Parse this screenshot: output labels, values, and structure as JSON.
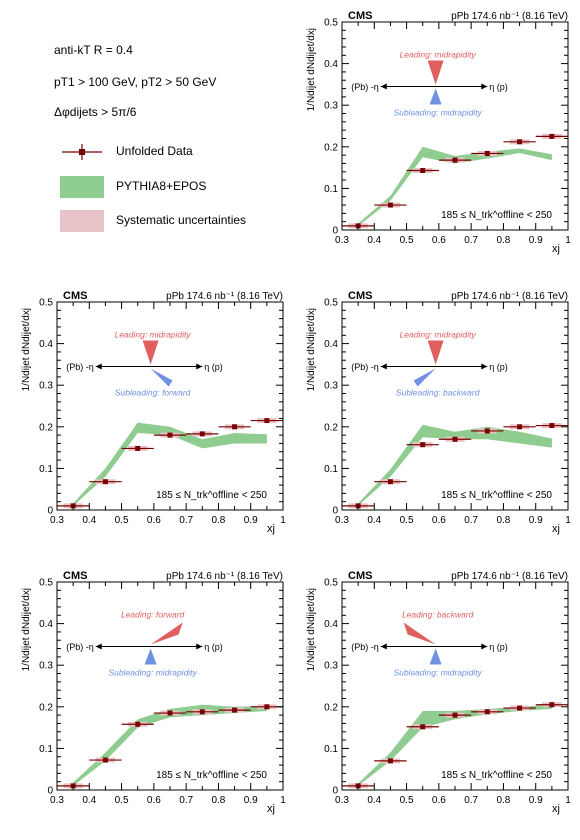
{
  "legend": {
    "algo": "anti-kT R = 0.4",
    "pt_cut": "pT1 > 100 GeV, pT2 > 50 GeV",
    "dphi_cut": "Δφdijets > 5π/6",
    "entries": [
      "Unfolded Data",
      "PYTHIA8+EPOS",
      "Systematic uncertainties"
    ]
  },
  "colors": {
    "data": "#7a0000",
    "band": "#8fcc8f",
    "syst": "#e8c4c8",
    "leading": "#e06060",
    "subleading": "#7090e0"
  },
  "chart_data": [
    {
      "type": "line",
      "experiment": "CMS",
      "lumi": "pPb 174.6 nb⁻¹ (8.16 TeV)",
      "xlabel": "xj",
      "ylabel": "1/Ndijet dNdijet/dxj",
      "xlim": [
        0.3,
        1.0
      ],
      "ylim": [
        0,
        0.5
      ],
      "xticks": [
        "0.3",
        "0.4",
        "0.5",
        "0.6",
        "0.7",
        "0.8",
        "0.9",
        "1"
      ],
      "yticks": [
        "0",
        "0.1",
        "0.2",
        "0.3",
        "0.4",
        "0.5"
      ],
      "multiplicity": "185 ≤ N_trk^offline < 250",
      "leading_label": "Leading: midrapidity",
      "subleading_label": "Subleading: midrapidity",
      "leading_dir": "mid",
      "subleading_dir": "mid",
      "eta_left": "(Pb) -η",
      "eta_right": "η (p)",
      "data": {
        "x": [
          0.35,
          0.45,
          0.55,
          0.65,
          0.75,
          0.85,
          0.95
        ],
        "y": [
          0.01,
          0.06,
          0.143,
          0.168,
          0.184,
          0.212,
          0.225
        ]
      },
      "model": {
        "x": [
          0.35,
          0.45,
          0.55,
          0.65,
          0.75,
          0.85,
          0.95
        ],
        "low": [
          0.01,
          0.07,
          0.175,
          0.16,
          0.172,
          0.185,
          0.168
        ],
        "high": [
          0.016,
          0.082,
          0.2,
          0.178,
          0.188,
          0.196,
          0.182
        ]
      }
    },
    {
      "type": "line",
      "experiment": "CMS",
      "lumi": "pPb 174.6 nb⁻¹ (8.16 TeV)",
      "xlabel": "xj",
      "ylabel": "1/Ndijet dNdijet/dxj",
      "xlim": [
        0.3,
        1.0
      ],
      "ylim": [
        0,
        0.5
      ],
      "xticks": [
        "0.3",
        "0.4",
        "0.5",
        "0.6",
        "0.7",
        "0.8",
        "0.9",
        "1"
      ],
      "yticks": [
        "0",
        "0.1",
        "0.2",
        "0.3",
        "0.4",
        "0.5"
      ],
      "multiplicity": "185 ≤ N_trk^offline < 250",
      "leading_label": "Leading: midrapidity",
      "subleading_label": "Subleading: forward",
      "leading_dir": "mid",
      "subleading_dir": "forward",
      "eta_left": "(Pb) -η",
      "eta_right": "η (p)",
      "data": {
        "x": [
          0.35,
          0.45,
          0.55,
          0.65,
          0.75,
          0.85,
          0.95
        ],
        "y": [
          0.01,
          0.068,
          0.148,
          0.18,
          0.183,
          0.2,
          0.215
        ]
      },
      "model": {
        "x": [
          0.35,
          0.45,
          0.55,
          0.65,
          0.75,
          0.85,
          0.95
        ],
        "low": [
          0.01,
          0.08,
          0.185,
          0.18,
          0.148,
          0.16,
          0.16
        ],
        "high": [
          0.016,
          0.1,
          0.21,
          0.2,
          0.17,
          0.185,
          0.182
        ]
      }
    },
    {
      "type": "line",
      "experiment": "CMS",
      "lumi": "pPb 174.6 nb⁻¹ (8.16 TeV)",
      "xlabel": "xj",
      "ylabel": "1/Ndijet dNdijet/dxj",
      "xlim": [
        0.3,
        1.0
      ],
      "ylim": [
        0,
        0.5
      ],
      "xticks": [
        "0.3",
        "0.4",
        "0.5",
        "0.6",
        "0.7",
        "0.8",
        "0.9",
        "1"
      ],
      "yticks": [
        "0",
        "0.1",
        "0.2",
        "0.3",
        "0.4",
        "0.5"
      ],
      "multiplicity": "185 ≤ N_trk^offline < 250",
      "leading_label": "Leading: midrapidity",
      "subleading_label": "Subleading: backward",
      "leading_dir": "mid",
      "subleading_dir": "backward",
      "eta_left": "(Pb) -η",
      "eta_right": "η (p)",
      "data": {
        "x": [
          0.35,
          0.45,
          0.55,
          0.65,
          0.75,
          0.85,
          0.95
        ],
        "y": [
          0.01,
          0.068,
          0.157,
          0.17,
          0.19,
          0.2,
          0.203
        ]
      },
      "model": {
        "x": [
          0.35,
          0.45,
          0.55,
          0.65,
          0.75,
          0.85,
          0.95
        ],
        "low": [
          0.01,
          0.08,
          0.175,
          0.17,
          0.17,
          0.16,
          0.15
        ],
        "high": [
          0.016,
          0.098,
          0.205,
          0.188,
          0.2,
          0.188,
          0.172
        ]
      }
    },
    {
      "type": "line",
      "experiment": "CMS",
      "lumi": "pPb 174.6 nb⁻¹ (8.16 TeV)",
      "xlabel": "xj",
      "ylabel": "1/Ndijet dNdijet/dxj",
      "xlim": [
        0.3,
        1.0
      ],
      "ylim": [
        0,
        0.5
      ],
      "xticks": [
        "0.3",
        "0.4",
        "0.5",
        "0.6",
        "0.7",
        "0.8",
        "0.9",
        "1"
      ],
      "yticks": [
        "0",
        "0.1",
        "0.2",
        "0.3",
        "0.4",
        "0.5"
      ],
      "multiplicity": "185 ≤ N_trk^offline < 250",
      "leading_label": "Leading: forward",
      "subleading_label": "Subleading: midrapidity",
      "leading_dir": "forward",
      "subleading_dir": "mid",
      "eta_left": "(Pb) -η",
      "eta_right": "η (p)",
      "data": {
        "x": [
          0.35,
          0.45,
          0.55,
          0.65,
          0.75,
          0.85,
          0.95
        ],
        "y": [
          0.01,
          0.072,
          0.158,
          0.185,
          0.188,
          0.192,
          0.2
        ]
      },
      "model": {
        "x": [
          0.35,
          0.45,
          0.55,
          0.65,
          0.75,
          0.85,
          0.95
        ],
        "low": [
          0.01,
          0.07,
          0.15,
          0.175,
          0.18,
          0.185,
          0.19
        ],
        "high": [
          0.018,
          0.09,
          0.17,
          0.195,
          0.205,
          0.2,
          0.202
        ]
      }
    },
    {
      "type": "line",
      "experiment": "CMS",
      "lumi": "pPb 174.6 nb⁻¹ (8.16 TeV)",
      "xlabel": "xj",
      "ylabel": "1/Ndijet dNdijet/dxj",
      "xlim": [
        0.3,
        1.0
      ],
      "ylim": [
        0,
        0.5
      ],
      "xticks": [
        "0.3",
        "0.4",
        "0.5",
        "0.6",
        "0.7",
        "0.8",
        "0.9",
        "1"
      ],
      "yticks": [
        "0",
        "0.1",
        "0.2",
        "0.3",
        "0.4",
        "0.5"
      ],
      "multiplicity": "185 ≤ N_trk^offline < 250",
      "leading_label": "Leading: backward",
      "subleading_label": "Subleading: midrapidity",
      "leading_dir": "backward",
      "subleading_dir": "mid",
      "eta_left": "(Pb) -η",
      "eta_right": "η (p)",
      "data": {
        "x": [
          0.35,
          0.45,
          0.55,
          0.65,
          0.75,
          0.85,
          0.95
        ],
        "y": [
          0.01,
          0.07,
          0.152,
          0.18,
          0.188,
          0.197,
          0.205
        ]
      },
      "model": {
        "x": [
          0.35,
          0.45,
          0.55,
          0.65,
          0.75,
          0.85,
          0.95
        ],
        "low": [
          0.01,
          0.07,
          0.15,
          0.17,
          0.182,
          0.19,
          0.195
        ],
        "high": [
          0.016,
          0.09,
          0.19,
          0.19,
          0.195,
          0.2,
          0.205
        ]
      }
    }
  ]
}
